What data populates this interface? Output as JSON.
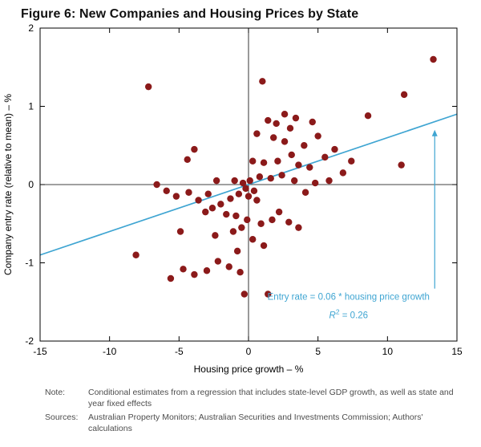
{
  "title": "Figure 6: New Companies and Housing Prices by State",
  "colors": {
    "point": "#8B1A1A",
    "trend": "#3FA5D2",
    "annotation": "#3FA5D2",
    "axis": "#000000",
    "note_text": "#4d4d4d"
  },
  "chart_data": {
    "type": "scatter",
    "title": "Figure 6: New Companies and Housing Prices by State",
    "xlabel": "Housing price growth – %",
    "ylabel": "Company entry rate (relative to mean) – %",
    "xlim": [
      -15,
      15
    ],
    "ylim": [
      -2,
      2
    ],
    "xticks": [
      -15,
      -10,
      -5,
      0,
      5,
      10,
      15
    ],
    "yticks": [
      -2,
      -1,
      0,
      1,
      2
    ],
    "grid": false,
    "zero_lines": true,
    "trendline": {
      "slope": 0.06,
      "intercept": 0,
      "x_start": -15,
      "x_end": 15
    },
    "points": [
      [
        13.3,
        1.6
      ],
      [
        -7.2,
        1.25
      ],
      [
        1.0,
        1.32
      ],
      [
        11.2,
        1.15
      ],
      [
        8.6,
        0.88
      ],
      [
        2.6,
        0.9
      ],
      [
        1.4,
        0.82
      ],
      [
        2.0,
        0.78
      ],
      [
        3.4,
        0.85
      ],
      [
        3.0,
        0.72
      ],
      [
        4.6,
        0.8
      ],
      [
        5.0,
        0.62
      ],
      [
        0.6,
        0.65
      ],
      [
        1.8,
        0.6
      ],
      [
        -3.9,
        0.45
      ],
      [
        -4.4,
        0.32
      ],
      [
        2.6,
        0.55
      ],
      [
        4.0,
        0.5
      ],
      [
        6.2,
        0.45
      ],
      [
        3.1,
        0.38
      ],
      [
        5.5,
        0.35
      ],
      [
        0.3,
        0.3
      ],
      [
        1.1,
        0.28
      ],
      [
        2.1,
        0.3
      ],
      [
        3.6,
        0.25
      ],
      [
        4.4,
        0.22
      ],
      [
        11.0,
        0.25
      ],
      [
        6.8,
        0.15
      ],
      [
        5.8,
        0.05
      ],
      [
        4.8,
        0.02
      ],
      [
        2.4,
        0.12
      ],
      [
        1.6,
        0.08
      ],
      [
        0.8,
        0.1
      ],
      [
        0.1,
        0.05
      ],
      [
        -0.4,
        0.02
      ],
      [
        -1.0,
        0.05
      ],
      [
        -6.6,
        0.0
      ],
      [
        -5.9,
        -0.08
      ],
      [
        -5.2,
        -0.15
      ],
      [
        -4.3,
        -0.1
      ],
      [
        -3.6,
        -0.2
      ],
      [
        -0.2,
        -0.05
      ],
      [
        0.4,
        -0.08
      ],
      [
        -0.7,
        -0.12
      ],
      [
        -1.3,
        -0.18
      ],
      [
        0.0,
        -0.15
      ],
      [
        0.6,
        -0.2
      ],
      [
        -2.0,
        -0.25
      ],
      [
        -2.6,
        -0.3
      ],
      [
        -3.1,
        -0.35
      ],
      [
        -1.6,
        -0.38
      ],
      [
        -0.9,
        -0.4
      ],
      [
        -0.1,
        -0.45
      ],
      [
        0.9,
        -0.5
      ],
      [
        1.7,
        -0.45
      ],
      [
        2.9,
        -0.48
      ],
      [
        3.6,
        -0.55
      ],
      [
        -0.5,
        -0.55
      ],
      [
        -1.1,
        -0.6
      ],
      [
        -4.9,
        -0.6
      ],
      [
        -2.4,
        -0.65
      ],
      [
        0.3,
        -0.7
      ],
      [
        1.1,
        -0.78
      ],
      [
        -0.8,
        -0.85
      ],
      [
        -8.1,
        -0.9
      ],
      [
        -5.6,
        -1.2
      ],
      [
        -4.7,
        -1.08
      ],
      [
        -3.9,
        -1.15
      ],
      [
        -3.0,
        -1.1
      ],
      [
        -2.2,
        -0.98
      ],
      [
        -1.4,
        -1.05
      ],
      [
        -0.6,
        -1.12
      ],
      [
        -0.3,
        -1.4
      ],
      [
        1.4,
        -1.4
      ],
      [
        2.2,
        -0.35
      ],
      [
        7.4,
        0.3
      ],
      [
        -2.9,
        -0.12
      ],
      [
        -2.3,
        0.05
      ],
      [
        3.3,
        0.05
      ],
      [
        4.1,
        -0.1
      ]
    ],
    "annotation": {
      "line1": "Entry rate = 0.06 * housing price growth",
      "line1_pos": [
        7.2,
        -1.47
      ],
      "line2_r": "R",
      "line2_sup": "2",
      "line2_rest": " = 0.26",
      "line2_pos": [
        7.2,
        -1.71
      ],
      "arrow": {
        "x": 13.4,
        "y_from": -1.33,
        "y_to": 0.7
      }
    },
    "legend": null
  },
  "notes": {
    "note_label": "Note:",
    "note_text": "Conditional estimates from a regression that includes state-level GDP growth, as well as state and year fixed effects",
    "sources_label": "Sources:",
    "sources_text": "Australian Property Monitors; Australian Securities and Investments Commission; Authors' calculations"
  }
}
